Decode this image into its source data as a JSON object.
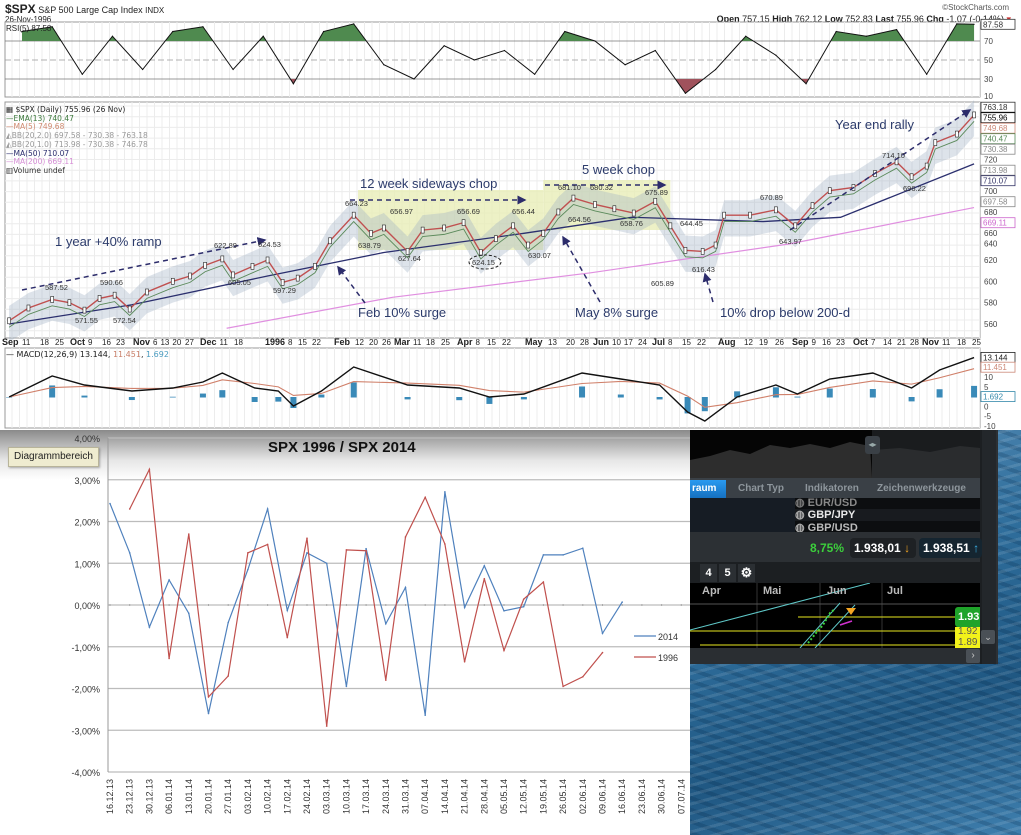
{
  "stockcharts": {
    "symbol": "$SPX",
    "name": "S&P 500 Large Cap Index",
    "exchange": "INDX",
    "date": "26-Nov-1996",
    "brand": "©StockCharts.com",
    "quote": {
      "open_label": "Open",
      "open": "757.15",
      "high_label": "High",
      "high": "762.12",
      "low_label": "Low",
      "low": "752.83",
      "last_label": "Last",
      "last": "755.96",
      "chg_label": "Chg",
      "chg": "-1.07 (-0.14%)",
      "chg_icon": "down-triangle-icon"
    },
    "rsi_legend": "RSI(5) 87.58",
    "legend": [
      {
        "text": "$SPX (Daily) 755.96 (26 Nov)",
        "color": "#222222"
      },
      {
        "text": "EMA(13) 740.47",
        "color": "#3d7a3d"
      },
      {
        "text": "MA(5) 749.68",
        "color": "#d08a70"
      },
      {
        "text": "BB(20,2.0) 697.58 - 730.38 - 763.18",
        "color": "#999999"
      },
      {
        "text": "BB(20,1.0) 713.98 - 730.38 - 746.78",
        "color": "#999999"
      },
      {
        "text": "MA(50) 710.07",
        "color": "#2b2f6e"
      },
      {
        "text": "MA(200) 669.11",
        "color": "#d68fd6"
      },
      {
        "text": "Volume undef",
        "color": "#333333"
      }
    ],
    "macd_legend": {
      "name": "MACD(12,26,9)",
      "macd": "13.144",
      "signal": "11.451",
      "hist": "1.692"
    },
    "annotations": [
      "1 year +40% ramp",
      "12 week sideways chop",
      "Feb 10% surge",
      "5 week chop",
      "May 8% surge",
      "10% drop below 200-d",
      "Year end rally"
    ],
    "price_labels": [
      "587.52",
      "590.66",
      "571.55",
      "572.54",
      "622.89",
      "624.53",
      "605.05",
      "597.29",
      "664.23",
      "638.79",
      "656.97",
      "627.64",
      "656.69",
      "624.15",
      "656.44",
      "630.07",
      "681.10",
      "680.32",
      "675.89",
      "664.56",
      "658.76",
      "644.45",
      "605.89",
      "616.43",
      "670.89",
      "643.97",
      "714.10",
      "696.22"
    ],
    "right_axis_boxes": [
      "763.18",
      "755.96",
      "749.68",
      "740.47",
      "730.38",
      "713.98",
      "710.07",
      "697.58",
      "669.11"
    ],
    "macd_boxes": [
      "13.144",
      "11.451",
      "1.692"
    ]
  },
  "chart_data": [
    {
      "type": "line",
      "title": "$SPX S&P 500 Large Cap Index",
      "price_axis": {
        "ticks": [
          560,
          580,
          600,
          620,
          640,
          660,
          680,
          700,
          720
        ],
        "range": [
          555,
          765
        ]
      },
      "rsi_axis": {
        "ticks": [
          10,
          30,
          50,
          70
        ]
      },
      "macd_axis": {
        "ticks": [
          -10,
          -5,
          0,
          5,
          10
        ]
      },
      "date_ticks": [
        "Sep",
        "11",
        "18",
        "25",
        "Oct",
        "9",
        "16",
        "23",
        "Nov",
        "6",
        "13",
        "20",
        "27",
        "Dec",
        "11",
        "18",
        "1996",
        "8",
        "15",
        "22",
        "Feb",
        "12",
        "20",
        "26",
        "Mar",
        "11",
        "18",
        "25",
        "Apr",
        "8",
        "15",
        "22",
        "May",
        "13",
        "20",
        "28",
        "Jun",
        "10",
        "17",
        "24",
        "Jul",
        "8",
        "15",
        "22",
        "Aug",
        "12",
        "19",
        "26",
        "Sep",
        "9",
        "16",
        "23",
        "Oct",
        "7",
        "14",
        "21",
        "28",
        "Nov",
        "11",
        "18",
        "25"
      ],
      "price": [
        [
          "1995-09-05",
          563
        ],
        [
          "1995-09-14",
          575
        ],
        [
          "1995-09-25",
          583
        ],
        [
          "1995-10-03",
          580
        ],
        [
          "1995-10-10",
          573
        ],
        [
          "1995-10-17",
          584
        ],
        [
          "1995-10-24",
          587
        ],
        [
          "1995-10-31",
          574
        ],
        [
          "1995-11-08",
          590
        ],
        [
          "1995-11-20",
          600
        ],
        [
          "1995-11-28",
          605
        ],
        [
          "1995-12-05",
          615
        ],
        [
          "1995-12-13",
          621
        ],
        [
          "1995-12-18",
          606
        ],
        [
          "1995-12-27",
          614
        ],
        [
          "1996-01-03",
          620
        ],
        [
          "1996-01-10",
          599
        ],
        [
          "1996-01-17",
          603
        ],
        [
          "1996-01-25",
          614
        ],
        [
          "1996-02-01",
          638
        ],
        [
          "1996-02-12",
          662
        ],
        [
          "1996-02-20",
          645
        ],
        [
          "1996-02-26",
          650
        ],
        [
          "1996-03-08",
          628
        ],
        [
          "1996-03-15",
          648
        ],
        [
          "1996-03-25",
          650
        ],
        [
          "1996-04-03",
          655
        ],
        [
          "1996-04-11",
          627
        ],
        [
          "1996-04-18",
          640
        ],
        [
          "1996-04-26",
          652
        ],
        [
          "1996-05-03",
          634
        ],
        [
          "1996-05-10",
          645
        ],
        [
          "1996-05-17",
          665
        ],
        [
          "1996-05-24",
          678
        ],
        [
          "1996-06-03",
          672
        ],
        [
          "1996-06-12",
          668
        ],
        [
          "1996-06-21",
          664
        ],
        [
          "1996-07-01",
          675
        ],
        [
          "1996-07-08",
          652
        ],
        [
          "1996-07-15",
          629
        ],
        [
          "1996-07-23",
          628
        ],
        [
          "1996-07-29",
          634
        ],
        [
          "1996-08-02",
          662
        ],
        [
          "1996-08-14",
          662
        ],
        [
          "1996-08-26",
          667
        ],
        [
          "1996-09-04",
          652
        ],
        [
          "1996-09-12",
          671
        ],
        [
          "1996-09-20",
          685
        ],
        [
          "1996-10-01",
          688
        ],
        [
          "1996-10-11",
          701
        ],
        [
          "1996-10-21",
          712
        ],
        [
          "1996-10-28",
          698
        ],
        [
          "1996-11-04",
          708
        ],
        [
          "1996-11-08",
          730
        ],
        [
          "1996-11-18",
          738
        ],
        [
          "1996-11-26",
          755.96
        ]
      ],
      "ma50": [
        [
          "1995-09-05",
          560
        ],
        [
          "1995-11-01",
          578
        ],
        [
          "1996-01-03",
          605
        ],
        [
          "1996-02-26",
          627
        ],
        [
          "1996-05-01",
          645
        ],
        [
          "1996-06-20",
          660
        ],
        [
          "1996-08-20",
          656
        ],
        [
          "1996-09-25",
          660
        ],
        [
          "1996-11-26",
          710.07
        ]
      ],
      "ma200": [
        [
          "1995-12-15",
          556
        ],
        [
          "1996-03-01",
          585
        ],
        [
          "1996-06-01",
          608
        ],
        [
          "1996-09-01",
          635
        ],
        [
          "1996-11-26",
          669.11
        ]
      ],
      "rsi": [
        [
          "1995-09-11",
          80
        ],
        [
          "1995-09-25",
          85
        ],
        [
          "1995-10-09",
          35
        ],
        [
          "1995-10-23",
          75
        ],
        [
          "1995-11-06",
          40
        ],
        [
          "1995-11-20",
          80
        ],
        [
          "1995-12-04",
          85
        ],
        [
          "1995-12-18",
          40
        ],
        [
          "1996-01-01",
          75
        ],
        [
          "1996-01-15",
          25
        ],
        [
          "1996-01-29",
          80
        ],
        [
          "1996-02-12",
          88
        ],
        [
          "1996-02-26",
          45
        ],
        [
          "1996-03-11",
          30
        ],
        [
          "1996-03-25",
          65
        ],
        [
          "1996-04-08",
          50
        ],
        [
          "1996-04-22",
          60
        ],
        [
          "1996-05-06",
          35
        ],
        [
          "1996-05-20",
          80
        ],
        [
          "1996-06-03",
          70
        ],
        [
          "1996-06-17",
          45
        ],
        [
          "1996-07-01",
          60
        ],
        [
          "1996-07-15",
          15
        ],
        [
          "1996-07-29",
          40
        ],
        [
          "1996-08-12",
          75
        ],
        [
          "1996-08-26",
          55
        ],
        [
          "1996-09-09",
          25
        ],
        [
          "1996-09-23",
          80
        ],
        [
          "1996-10-07",
          75
        ],
        [
          "1996-10-21",
          82
        ],
        [
          "1996-11-04",
          35
        ],
        [
          "1996-11-18",
          88
        ],
        [
          "1996-11-26",
          87.58
        ]
      ],
      "macd": [
        [
          "1995-09-05",
          0
        ],
        [
          "1995-09-25",
          7
        ],
        [
          "1995-10-10",
          4
        ],
        [
          "1995-11-01",
          2
        ],
        [
          "1995-11-20",
          3
        ],
        [
          "1995-12-04",
          5
        ],
        [
          "1995-12-13",
          8
        ],
        [
          "1995-12-28",
          3
        ],
        [
          "1996-01-08",
          2
        ],
        [
          "1996-01-15",
          -3
        ],
        [
          "1996-01-28",
          2
        ],
        [
          "1996-02-12",
          10
        ],
        [
          "1996-03-08",
          4
        ],
        [
          "1996-04-01",
          3
        ],
        [
          "1996-04-15",
          0
        ],
        [
          "1996-05-01",
          1
        ],
        [
          "1996-05-28",
          8
        ],
        [
          "1996-06-15",
          6
        ],
        [
          "1996-07-03",
          4
        ],
        [
          "1996-07-16",
          -5
        ],
        [
          "1996-07-24",
          -8
        ],
        [
          "1996-08-08",
          0
        ],
        [
          "1996-08-26",
          4
        ],
        [
          "1996-09-05",
          1
        ],
        [
          "1996-09-20",
          6
        ],
        [
          "1996-10-10",
          8
        ],
        [
          "1996-10-28",
          3
        ],
        [
          "1996-11-10",
          9
        ],
        [
          "1996-11-26",
          13.144
        ]
      ]
    },
    {
      "type": "line",
      "title": "SPX 1996 / SPX 2014",
      "tooltip": "Diagrammbereich",
      "ylim": [
        -4,
        4
      ],
      "y_ticks": [
        "4,00%",
        "3,00%",
        "2,00%",
        "1,00%",
        "0,00%",
        "-1,00%",
        "-2,00%",
        "-3,00%",
        "-4,00%"
      ],
      "legend_position": "right",
      "categories": [
        "16.12.13",
        "23.12.13",
        "30.12.13",
        "06.01.14",
        "13.01.14",
        "20.01.14",
        "27.01.14",
        "03.02.14",
        "10.02.14",
        "17.02.14",
        "24.02.14",
        "03.03.14",
        "10.03.14",
        "17.03.14",
        "24.03.14",
        "31.03.14",
        "07.04.14",
        "14.04.14",
        "21.04.14",
        "28.04.14",
        "05.05.14",
        "12.05.14",
        "19.05.14",
        "26.05.14",
        "02.06.14",
        "09.06.14",
        "16.06.14",
        "23.06.14",
        "30.06.14",
        "07.07.14"
      ],
      "series": [
        {
          "name": "2014",
          "color": "#4f81bd",
          "values": [
            2.43,
            1.25,
            -0.53,
            0.6,
            -0.2,
            -2.6,
            -0.42,
            0.85,
            2.3,
            -0.13,
            1.25,
            1.0,
            -1.95,
            1.35,
            -0.45,
            0.42,
            -2.64,
            2.71,
            -0.06,
            0.94,
            -0.14,
            -0.04,
            1.2,
            1.2,
            1.36,
            -0.68,
            0.07,
            null,
            null,
            null
          ]
        },
        {
          "name": "1996",
          "color": "#c0504d",
          "values": [
            null,
            2.3,
            3.25,
            -1.28,
            1.7,
            -2.2,
            -1.7,
            1.25,
            1.45,
            -0.78,
            1.6,
            -2.9,
            1.32,
            1.3,
            -1.8,
            1.63,
            2.58,
            1.46,
            -1.36,
            0.63,
            -1.09,
            0.14,
            0.55,
            -1.95,
            -1.72,
            -1.14,
            null,
            null,
            null,
            null
          ]
        }
      ]
    }
  ],
  "trading_app": {
    "tabs": [
      "raum",
      "Chart Typ",
      "Indikatoren",
      "Zeichenwerkzeuge"
    ],
    "instruments": [
      "EUR/USD",
      "GBP/JPY",
      "GBP/USD"
    ],
    "change": "8,75%",
    "bid": "1.938,01",
    "ask": "1.938,51",
    "toolbar": [
      "4",
      "5"
    ],
    "months": [
      "Apr",
      "Mai",
      "Jun",
      "Jul"
    ],
    "price_tags": [
      "1.93",
      "1.92",
      "1.89"
    ],
    "colors": {
      "accent": "#1a86d8",
      "up": "#3ccf3c",
      "tag": "#1fa32a",
      "scale": "#f2f21a"
    }
  }
}
